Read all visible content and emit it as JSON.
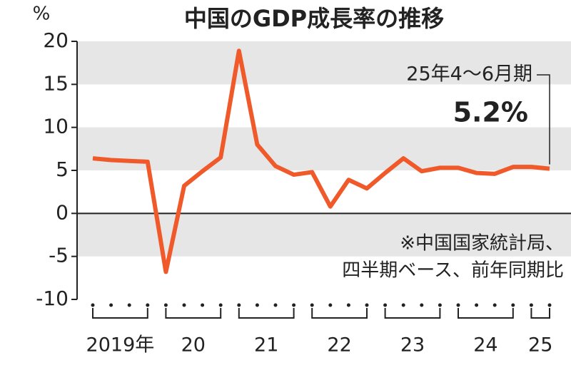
{
  "chart_data": {
    "type": "line",
    "title": "中国のGDP成長率の推移",
    "y_unit": "%",
    "categories": [
      "2019年",
      null,
      null,
      null,
      "20",
      null,
      null,
      null,
      "21",
      null,
      null,
      null,
      "22",
      null,
      null,
      null,
      "23",
      null,
      null,
      null,
      "24",
      null,
      null,
      null,
      "25",
      null
    ],
    "series": [
      {
        "name": "GDP成長率",
        "color": "#f0592a",
        "values": [
          6.4,
          6.2,
          6.1,
          6.0,
          -6.8,
          3.2,
          4.9,
          6.5,
          18.9,
          8.0,
          5.5,
          4.5,
          4.8,
          0.8,
          3.9,
          2.9,
          4.7,
          6.4,
          4.9,
          5.3,
          5.3,
          4.7,
          4.6,
          5.4,
          5.4,
          5.2
        ],
        "value_labels": [
          null,
          null,
          null,
          null,
          null,
          null,
          null,
          null,
          null,
          null,
          null,
          null,
          null,
          null,
          null,
          null,
          null,
          null,
          null,
          null,
          null,
          null,
          null,
          null,
          null,
          "5.2%"
        ]
      }
    ],
    "annotation": "25年4～6月期",
    "note": [
      "※中国国家統計局、",
      "四半期ベース、前年同期比"
    ],
    "ylim": [
      -10,
      20
    ],
    "yticks": [
      -10,
      -5,
      0,
      5,
      10,
      15,
      20
    ],
    "bands": true
  }
}
